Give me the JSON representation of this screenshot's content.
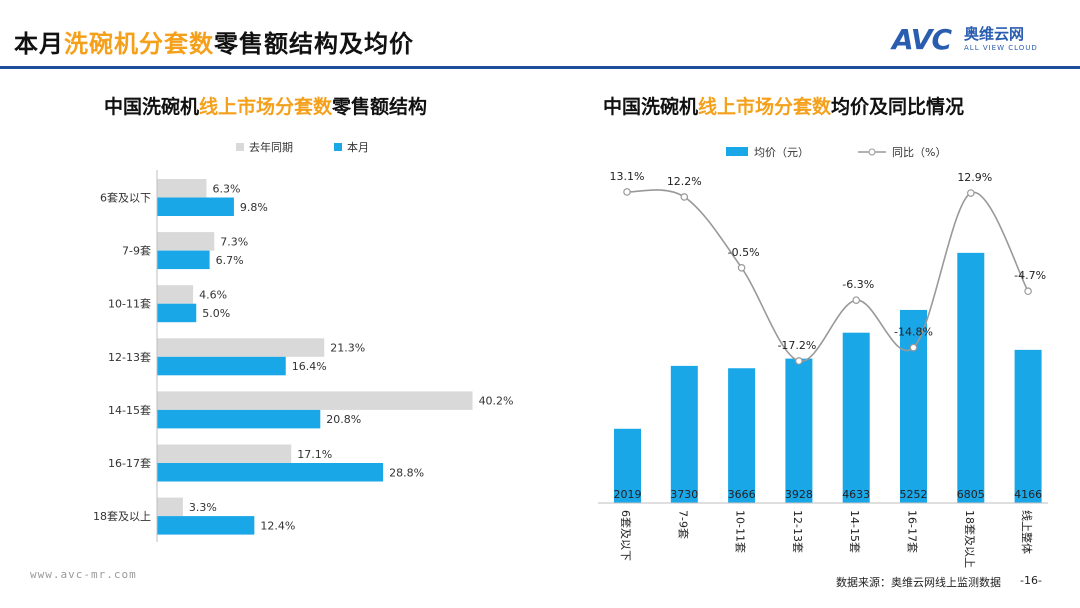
{
  "header": {
    "title_pre": "本月",
    "title_highlight": "洗碗机分套数",
    "title_post": "零售额结构及均价",
    "logo_mark": "AVC",
    "logo_cn": "奥维云网",
    "logo_en": "ALL VIEW CLOUD"
  },
  "colors": {
    "accent": "#f5a01a",
    "current": "#1aa7e8",
    "lastyear": "#d9d9d9",
    "line": "#999999",
    "brand": "#2a5db0"
  },
  "left_panel": {
    "title_pre": "中国洗碗机",
    "title_highlight": "线上市场分套数",
    "title_post": "零售额结构"
  },
  "right_panel": {
    "title_pre": "中国洗碗机",
    "title_highlight": "线上市场分套数",
    "title_post": "均价及同比情况"
  },
  "chart_data": [
    {
      "type": "bar",
      "orientation": "horizontal",
      "categories": [
        "6套及以下",
        "7-9套",
        "10-11套",
        "12-13套",
        "14-15套",
        "16-17套",
        "18套及以上"
      ],
      "series": [
        {
          "name": "去年同期",
          "values": [
            6.3,
            7.3,
            4.6,
            21.3,
            40.2,
            17.1,
            3.3
          ],
          "labels": [
            "6.3%",
            "7.3%",
            "4.6%",
            "21.3%",
            "40.2%",
            "17.1%",
            "3.3%"
          ]
        },
        {
          "name": "本月",
          "values": [
            9.8,
            6.7,
            5.0,
            16.4,
            20.8,
            28.8,
            12.4
          ],
          "labels": [
            "9.8%",
            "6.7%",
            "5.0%",
            "16.4%",
            "20.8%",
            "28.8%",
            "12.4%"
          ]
        }
      ],
      "legend_position": "top",
      "xlim": [
        0,
        45
      ]
    },
    {
      "type": "bar+line",
      "categories": [
        "6套及以下",
        "7-9套",
        "10-11套",
        "12-13套",
        "14-15套",
        "16-17套",
        "18套及以上",
        "线上整体"
      ],
      "bar_series": {
        "name": "均价（元）",
        "values": [
          2019,
          3730,
          3666,
          3928,
          4633,
          5252,
          6805,
          4166
        ],
        "labels": [
          "2019",
          "3730",
          "3666",
          "3928",
          "4633",
          "5252",
          "6805",
          "4166"
        ]
      },
      "line_series": {
        "name": "同比（%）",
        "values": [
          13.1,
          12.2,
          -0.5,
          -17.2,
          -6.3,
          -14.8,
          12.9,
          -4.7
        ],
        "labels": [
          "13.1%",
          "12.2%",
          "-0.5%",
          "-17.2%",
          "-6.3%",
          "-14.8%",
          "12.9%",
          "-4.7%"
        ]
      },
      "legend_position": "top",
      "ylim_bar": [
        0,
        8000
      ],
      "ylim_line": [
        -20,
        15
      ]
    }
  ],
  "footer": {
    "url": "www.avc-mr.com",
    "source": "数据来源：奥维云网线上监测数据",
    "page": "-16-"
  }
}
